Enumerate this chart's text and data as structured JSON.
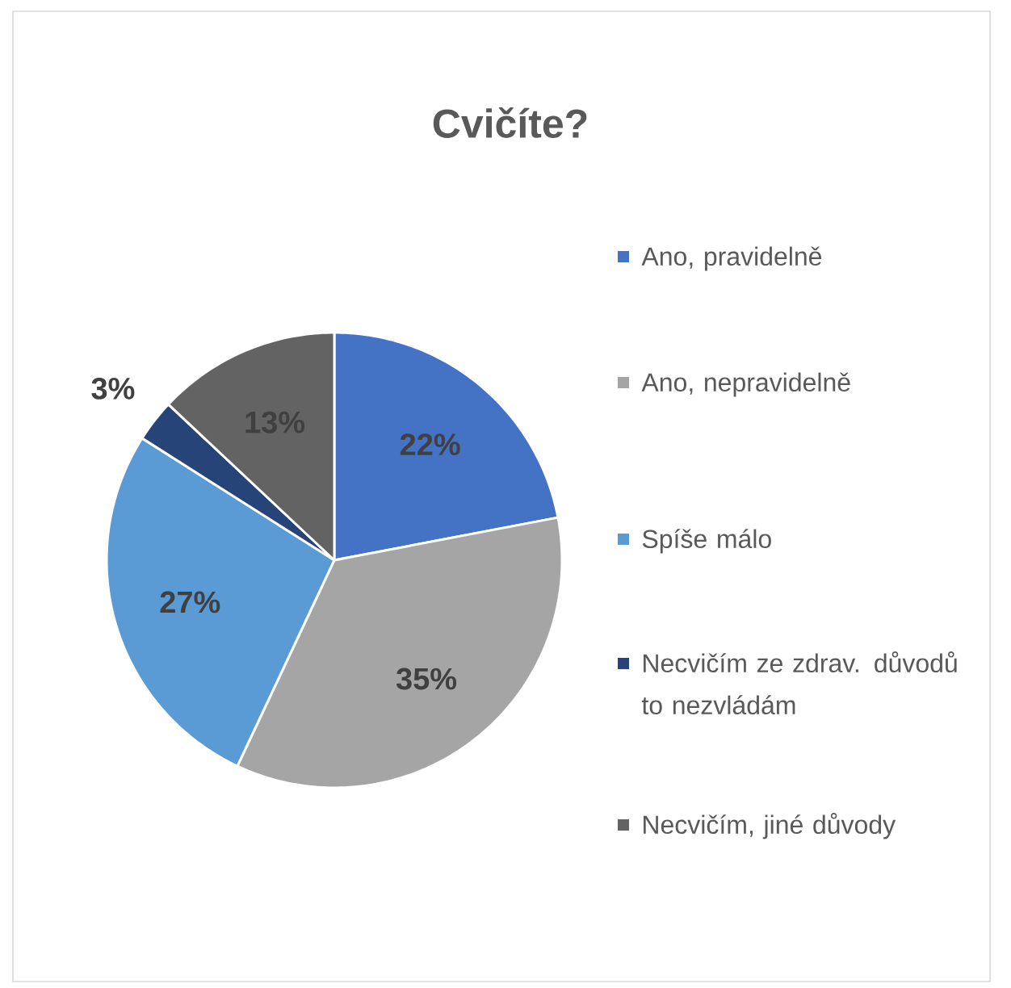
{
  "chart_data": {
    "type": "pie",
    "title": "Cvičíte?",
    "categories": [
      "Ano, pravidelně",
      "Ano, nepravidelně",
      "Spíše málo",
      "Necvičím ze zdrav. důvodů to nezvládám",
      "Necvičím, jiné důvody"
    ],
    "values": [
      22,
      35,
      27,
      3,
      13
    ],
    "value_labels": [
      "22%",
      "35%",
      "27%",
      "3%",
      "13%"
    ],
    "colors": [
      "#4472c4",
      "#a5a5a5",
      "#5b9bd5",
      "#264478",
      "#636363"
    ],
    "legend": "right"
  }
}
